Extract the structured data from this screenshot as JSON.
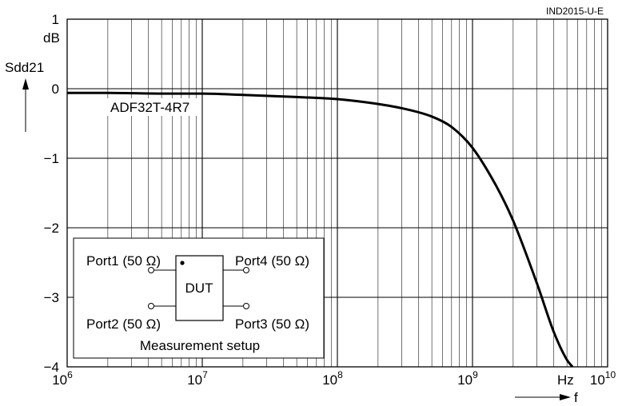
{
  "figure_id": "IND2015-U-E",
  "chart_data": {
    "type": "line",
    "title": "",
    "ylabel": "Sdd21",
    "yunit": "dB",
    "xlabel": "f",
    "xunit": "Hz",
    "xscale": "log",
    "xlim": [
      1000000,
      10000000000
    ],
    "ylim": [
      -4,
      1
    ],
    "yticks": [
      1,
      0,
      -1,
      -2,
      -3,
      -4
    ],
    "ytick_labels": [
      "1",
      "0",
      "−1",
      "−2",
      "−3",
      "−4"
    ],
    "xticks": [
      {
        "base": "10",
        "exp": "6",
        "value": 1000000
      },
      {
        "base": "10",
        "exp": "7",
        "value": 10000000
      },
      {
        "base": "10",
        "exp": "8",
        "value": 100000000
      },
      {
        "base": "10",
        "exp": "9",
        "value": 1000000000
      },
      {
        "base": "10",
        "exp": "10",
        "value": 10000000000
      }
    ],
    "grid": true,
    "series": [
      {
        "name": "ADF32T-4R7",
        "color": "#000000",
        "x": [
          1000000,
          2000000,
          5000000,
          10000000,
          20000000,
          50000000,
          100000000,
          200000000,
          300000000,
          500000000,
          700000000,
          1000000000,
          1500000000,
          2000000000,
          3000000000,
          4000000000,
          5000000000,
          5500000000
        ],
        "y": [
          -0.06,
          -0.06,
          -0.07,
          -0.07,
          -0.09,
          -0.12,
          -0.15,
          -0.22,
          -0.28,
          -0.4,
          -0.55,
          -0.85,
          -1.4,
          -1.9,
          -2.8,
          -3.5,
          -3.9,
          -4.0
        ]
      }
    ]
  },
  "inset": {
    "caption": "Measurement setup",
    "device": "DUT",
    "ports": {
      "port1": "Port1 (50 Ω)",
      "port2": "Port2 (50 Ω)",
      "port3": "Port3 (50 Ω)",
      "port4": "Port4 (50 Ω)"
    }
  }
}
